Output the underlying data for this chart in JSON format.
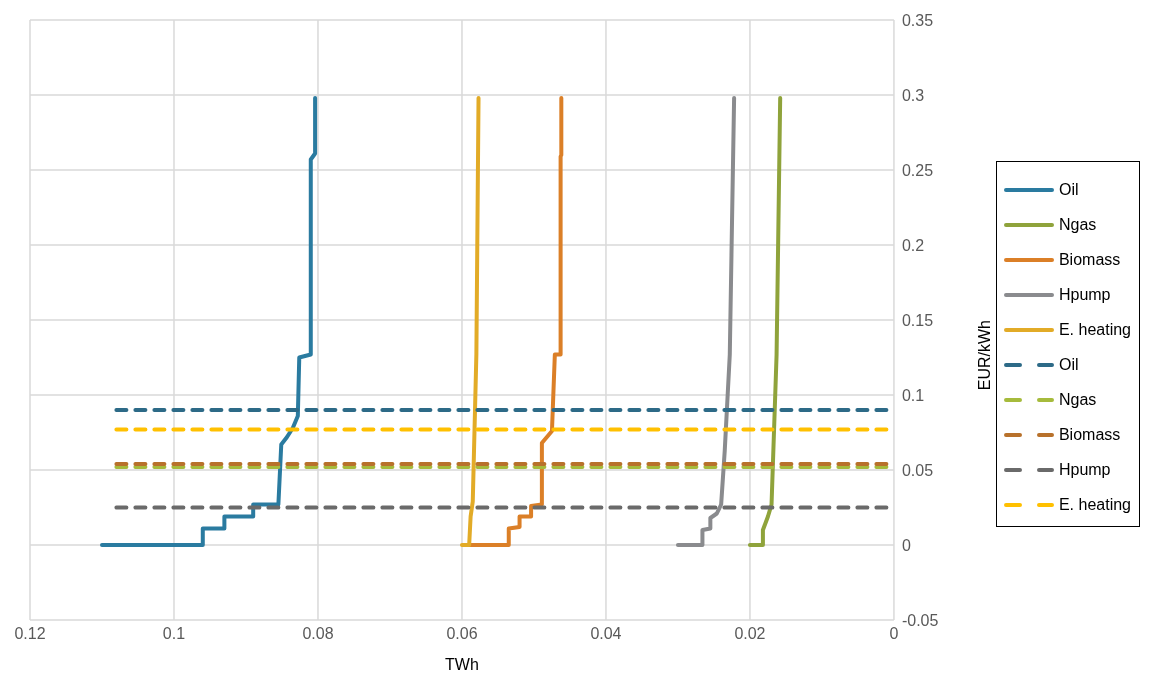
{
  "chart_data": {
    "type": "line",
    "xlabel": "TWh",
    "ylabel": "EUR/kWh",
    "xlim": [
      0.12,
      0
    ],
    "xticks": [
      0.12,
      0.1,
      0.08,
      0.06,
      0.04,
      0.02,
      0
    ],
    "ylim": [
      -0.05,
      0.35
    ],
    "yticks": [
      -0.05,
      0,
      0.05,
      0.1,
      0.15,
      0.2,
      0.25,
      0.3,
      0.35
    ],
    "grid": true,
    "legend": "right",
    "marker": "none",
    "series": [
      {
        "name": "Oil",
        "color": "#2a7ba0",
        "line_style": "solid",
        "x": [
          0.11,
          0.096,
          0.096,
          0.093,
          0.093,
          0.089,
          0.089,
          0.0855,
          0.0851,
          0.0843,
          0.0835,
          0.0828,
          0.0826,
          0.081,
          0.081,
          0.0804,
          0.0804
        ],
        "values": [
          0,
          0,
          0.011,
          0.011,
          0.019,
          0.019,
          0.027,
          0.027,
          0.067,
          0.072,
          0.078,
          0.086,
          0.125,
          0.127,
          0.257,
          0.261,
          0.298
        ]
      },
      {
        "name": "Ngas",
        "color": "#8fa33b",
        "line_style": "solid",
        "x": [
          0.02,
          0.0182,
          0.0182,
          0.0175,
          0.017,
          0.0163,
          0.0158
        ],
        "values": [
          0,
          0,
          0.01,
          0.019,
          0.027,
          0.127,
          0.298
        ]
      },
      {
        "name": "Biomass",
        "color": "#db7f27",
        "line_style": "solid",
        "x": [
          0.059,
          0.0535,
          0.0535,
          0.052,
          0.052,
          0.0504,
          0.0504,
          0.0489,
          0.0489,
          0.0475,
          0.0471,
          0.0463,
          0.0463,
          0.0462,
          0.0462
        ],
        "values": [
          0,
          0,
          0.011,
          0.012,
          0.019,
          0.019,
          0.026,
          0.027,
          0.068,
          0.076,
          0.127,
          0.127,
          0.259,
          0.26,
          0.298
        ]
      },
      {
        "name": "Hpump",
        "color": "#8a8b8e",
        "line_style": "solid",
        "x": [
          0.03,
          0.0266,
          0.0266,
          0.0255,
          0.0255,
          0.0246,
          0.024,
          0.0235,
          0.0228,
          0.0222
        ],
        "values": [
          0,
          0,
          0.01,
          0.011,
          0.018,
          0.021,
          0.027,
          0.063,
          0.127,
          0.298
        ]
      },
      {
        "name": "E. heating",
        "color": "#e2ab27",
        "line_style": "solid",
        "x": [
          0.06,
          0.059,
          0.0588,
          0.0585,
          0.058,
          0.0577
        ],
        "values": [
          0,
          0,
          0.019,
          0.029,
          0.127,
          0.298
        ]
      },
      {
        "name": "Oil",
        "color": "#2d6a87",
        "line_style": "dashed",
        "x": [
          0.108,
          0
        ],
        "values": [
          0.09,
          0.09
        ]
      },
      {
        "name": "Ngas",
        "color": "#a6bb3c",
        "line_style": "dashed",
        "x": [
          0.108,
          0
        ],
        "values": [
          0.052,
          0.052
        ]
      },
      {
        "name": "Biomass",
        "color": "#b8712b",
        "line_style": "dashed",
        "x": [
          0.108,
          0
        ],
        "values": [
          0.054,
          0.054
        ]
      },
      {
        "name": "Hpump",
        "color": "#6a6a6a",
        "line_style": "dashed",
        "x": [
          0.108,
          0
        ],
        "values": [
          0.025,
          0.025
        ]
      },
      {
        "name": "E. heating",
        "color": "#ffc000",
        "line_style": "dashed",
        "x": [
          0.108,
          0
        ],
        "values": [
          0.077,
          0.077
        ]
      }
    ]
  }
}
